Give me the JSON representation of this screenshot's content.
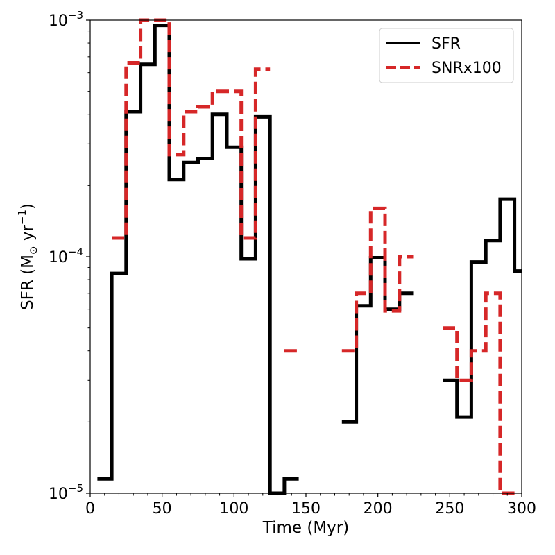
{
  "chart_data": {
    "type": "line",
    "drawstyle": "steps",
    "title": "",
    "xlabel": "Time (Myr)",
    "ylabel_main": "SFR (M",
    "ylabel_sub": "⊙",
    "ylabel_unit": " yr",
    "ylabel_sup": "−1",
    "ylabel_end": ")",
    "xlim": [
      0,
      300
    ],
    "ylim": [
      1e-05,
      0.001
    ],
    "yscale": "log",
    "xticks": [
      0,
      50,
      100,
      150,
      200,
      250,
      300
    ],
    "xtick_labels": [
      "0",
      "50",
      "100",
      "150",
      "200",
      "250",
      "300"
    ],
    "yticks": [
      {
        "value": 1e-05,
        "base": "10",
        "exp": "−5"
      },
      {
        "value": 0.0001,
        "base": "10",
        "exp": "−4"
      },
      {
        "value": 0.001,
        "base": "10",
        "exp": "−3"
      }
    ],
    "legend": {
      "position": "top-right",
      "entries": [
        {
          "label": "SFR",
          "color": "#000000",
          "style": "solid"
        },
        {
          "label": "SNRx100",
          "color": "#d62728",
          "style": "dashed"
        }
      ]
    },
    "series": [
      {
        "name": "SFR",
        "color": "#000000",
        "style": "solid",
        "segments": [
          [
            [
              5,
              1.15e-05
            ],
            [
              15,
              1.15e-05
            ],
            [
              15,
              8.5e-05
            ],
            [
              25,
              8.5e-05
            ],
            [
              25,
              0.00041
            ],
            [
              35,
              0.00041
            ],
            [
              35,
              0.00065
            ],
            [
              45,
              0.00065
            ],
            [
              45,
              0.00095
            ],
            [
              55,
              0.00095
            ],
            [
              55,
              0.000212
            ],
            [
              65,
              0.000212
            ],
            [
              65,
              0.00025
            ],
            [
              75,
              0.00025
            ],
            [
              75,
              0.00026
            ],
            [
              85,
              0.00026
            ],
            [
              85,
              0.0004
            ],
            [
              95,
              0.0004
            ],
            [
              95,
              0.00029
            ],
            [
              105,
              0.00029
            ],
            [
              105,
              9.8e-05
            ],
            [
              115,
              9.8e-05
            ],
            [
              115,
              0.00039
            ],
            [
              125,
              0.00039
            ],
            [
              125,
              1e-05
            ],
            [
              135,
              1e-05
            ],
            [
              135,
              1.15e-05
            ],
            [
              145,
              1.15e-05
            ]
          ],
          [
            [
              175,
              2e-05
            ],
            [
              185,
              2e-05
            ],
            [
              185,
              6.2e-05
            ],
            [
              195,
              6.2e-05
            ],
            [
              195,
              9.9e-05
            ],
            [
              205,
              9.9e-05
            ],
            [
              205,
              6e-05
            ],
            [
              215,
              6e-05
            ],
            [
              215,
              7e-05
            ],
            [
              225,
              7e-05
            ]
          ],
          [
            [
              245,
              3e-05
            ],
            [
              255,
              3e-05
            ],
            [
              255,
              2.1e-05
            ],
            [
              265,
              2.1e-05
            ],
            [
              265,
              9.5e-05
            ],
            [
              275,
              9.5e-05
            ],
            [
              275,
              0.000117
            ],
            [
              285,
              0.000117
            ],
            [
              285,
              0.000175
            ],
            [
              295,
              0.000175
            ],
            [
              295,
              8.7e-05
            ],
            [
              300,
              8.7e-05
            ]
          ]
        ]
      },
      {
        "name": "SNRx100",
        "color": "#d62728",
        "style": "dashed",
        "segments": [
          [
            [
              15,
              0.00012
            ],
            [
              25,
              0.00012
            ],
            [
              25,
              0.00066
            ],
            [
              35,
              0.00066
            ],
            [
              35,
              0.001
            ],
            [
              45,
              0.001
            ],
            [
              45,
              0.001
            ],
            [
              55,
              0.001
            ],
            [
              55,
              0.00027
            ],
            [
              65,
              0.00027
            ],
            [
              65,
              0.00041
            ],
            [
              75,
              0.00041
            ],
            [
              75,
              0.00043
            ],
            [
              85,
              0.00043
            ],
            [
              85,
              0.0005
            ],
            [
              95,
              0.0005
            ],
            [
              95,
              0.0005
            ],
            [
              105,
              0.0005
            ],
            [
              105,
              0.00012
            ],
            [
              115,
              0.00012
            ],
            [
              115,
              0.00062
            ],
            [
              125,
              0.00062
            ]
          ],
          [
            [
              135,
              4e-05
            ],
            [
              145,
              4e-05
            ]
          ],
          [
            [
              175,
              4e-05
            ],
            [
              185,
              4e-05
            ],
            [
              185,
              7e-05
            ],
            [
              195,
              7e-05
            ],
            [
              195,
              0.00016
            ],
            [
              205,
              0.00016
            ],
            [
              205,
              5.9e-05
            ],
            [
              215,
              5.9e-05
            ],
            [
              215,
              0.0001
            ],
            [
              225,
              0.0001
            ]
          ],
          [
            [
              245,
              5e-05
            ],
            [
              255,
              5e-05
            ],
            [
              255,
              3e-05
            ],
            [
              265,
              3e-05
            ],
            [
              265,
              4e-05
            ],
            [
              275,
              4e-05
            ],
            [
              275,
              7e-05
            ],
            [
              285,
              7e-05
            ],
            [
              285,
              1e-05
            ],
            [
              295,
              1e-05
            ]
          ]
        ]
      }
    ]
  }
}
